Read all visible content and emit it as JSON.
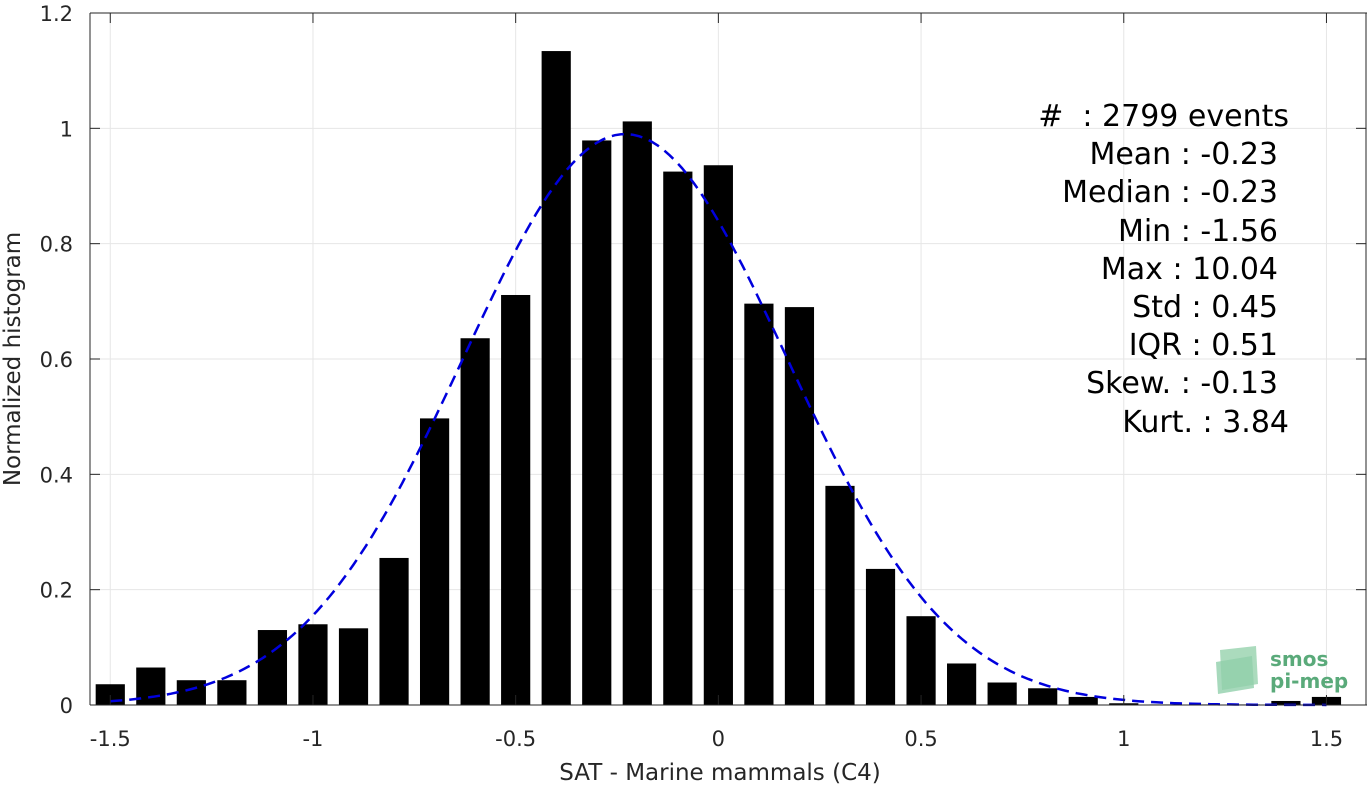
{
  "chart_data": {
    "type": "bar",
    "xlabel": "SAT - Marine mammals (C4)",
    "ylabel": "Normalized histogram",
    "xlim": [
      -1.55,
      1.6
    ],
    "ylim": [
      0,
      1.2
    ],
    "xticks": [
      -1.5,
      -1,
      -0.5,
      0,
      0.5,
      1,
      1.5
    ],
    "xtick_labels": [
      "-1.5",
      "-1",
      "-0.5",
      "0",
      "0.5",
      "1",
      "1.5"
    ],
    "yticks": [
      0,
      0.2,
      0.4,
      0.6,
      0.8,
      1,
      1.2
    ],
    "ytick_labels": [
      "0",
      "0.2",
      "0.4",
      "0.6",
      "0.8",
      "1",
      "1.2"
    ],
    "grid": true,
    "bin_width": 0.1,
    "bar_color": "#000000",
    "bins": [
      {
        "x": -1.5,
        "y": 0.036
      },
      {
        "x": -1.4,
        "y": 0.065
      },
      {
        "x": -1.3,
        "y": 0.043
      },
      {
        "x": -1.2,
        "y": 0.043
      },
      {
        "x": -1.1,
        "y": 0.13
      },
      {
        "x": -1.0,
        "y": 0.14
      },
      {
        "x": -0.9,
        "y": 0.133
      },
      {
        "x": -0.8,
        "y": 0.255
      },
      {
        "x": -0.7,
        "y": 0.497
      },
      {
        "x": -0.6,
        "y": 0.636
      },
      {
        "x": -0.5,
        "y": 0.711
      },
      {
        "x": -0.4,
        "y": 1.134
      },
      {
        "x": -0.3,
        "y": 0.979
      },
      {
        "x": -0.2,
        "y": 1.012
      },
      {
        "x": -0.1,
        "y": 0.925
      },
      {
        "x": 0.0,
        "y": 0.936
      },
      {
        "x": 0.1,
        "y": 0.696
      },
      {
        "x": 0.2,
        "y": 0.69
      },
      {
        "x": 0.3,
        "y": 0.38
      },
      {
        "x": 0.4,
        "y": 0.236
      },
      {
        "x": 0.5,
        "y": 0.154
      },
      {
        "x": 0.6,
        "y": 0.072
      },
      {
        "x": 0.7,
        "y": 0.039
      },
      {
        "x": 0.8,
        "y": 0.029
      },
      {
        "x": 0.9,
        "y": 0.014
      },
      {
        "x": 1.0,
        "y": 0.003
      },
      {
        "x": 1.1,
        "y": 0.001
      },
      {
        "x": 1.2,
        "y": 0.001
      },
      {
        "x": 1.3,
        "y": 0.001
      },
      {
        "x": 1.4,
        "y": 0.007
      },
      {
        "x": 1.5,
        "y": 0.014
      }
    ],
    "fit": {
      "type": "gaussian",
      "color": "#0000dd",
      "style": "dashed",
      "mean": -0.23,
      "std": 0.4,
      "peak": 0.99
    }
  },
  "stats": [
    "#  : 2799 events",
    "Mean : -0.23",
    "Median : -0.23",
    "Min : -1.56",
    "Max : 10.04",
    "Std : 0.45",
    "IQR : 0.51",
    "Skew. : -0.13",
    "Kurt. : 3.84"
  ],
  "logo": {
    "line1": "smos",
    "line2": "pi-mep",
    "color": "#5aaa7a"
  }
}
